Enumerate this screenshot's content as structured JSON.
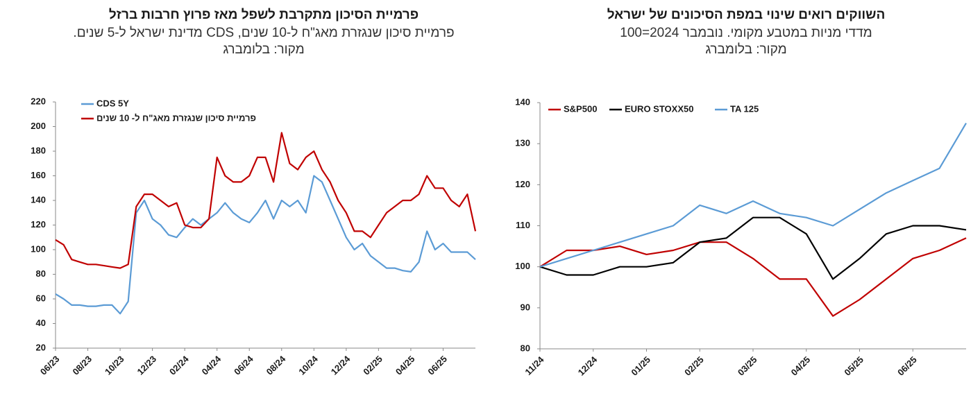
{
  "chart_data": [
    {
      "type": "line",
      "title": "פרמיית הסיכון מתקרבת לשפל מאז פרוץ חרבות ברזל",
      "subtitle": "פרמיית סיכון שנגזרת מאג\"ח ל-10 שנים, CDS מדינת ישראל ל-5 שנים.",
      "source": "מקור: בלומברג",
      "categories": [
        "06/23",
        null,
        null,
        null,
        "08/23",
        null,
        null,
        null,
        "10/23",
        null,
        null,
        null,
        "12/23",
        null,
        null,
        null,
        "02/24",
        null,
        null,
        null,
        "04/24",
        null,
        null,
        null,
        "06/24",
        null,
        null,
        null,
        "08/24",
        null,
        null,
        null,
        "10/24",
        null,
        null,
        null,
        "12/24",
        null,
        null,
        null,
        "02/25",
        null,
        null,
        null,
        "04/25",
        null,
        null,
        null,
        "06/25",
        null,
        null,
        null,
        null
      ],
      "series": [
        {
          "name": "CDS 5Y",
          "color": "#5b9bd5",
          "values": [
            64,
            60,
            55,
            55,
            54,
            54,
            55,
            55,
            48,
            58,
            130,
            140,
            125,
            120,
            112,
            110,
            118,
            125,
            120,
            125,
            130,
            138,
            130,
            125,
            122,
            130,
            140,
            125,
            140,
            135,
            140,
            130,
            160,
            155,
            140,
            125,
            110,
            100,
            105,
            95,
            90,
            85,
            85,
            83,
            82,
            90,
            115,
            100,
            105,
            98,
            98,
            98,
            92
          ]
        },
        {
          "name": "פרמיית סיכון שנגזרת מאג\"ח ל- 10 שנים",
          "color": "#c00000",
          "values": [
            108,
            104,
            92,
            90,
            88,
            88,
            87,
            86,
            85,
            88,
            135,
            145,
            145,
            140,
            135,
            138,
            120,
            118,
            118,
            125,
            175,
            160,
            155,
            155,
            160,
            175,
            175,
            155,
            195,
            170,
            165,
            175,
            180,
            165,
            155,
            140,
            130,
            115,
            115,
            110,
            120,
            130,
            135,
            140,
            140,
            145,
            160,
            150,
            150,
            140,
            135,
            145,
            115
          ]
        }
      ],
      "ylim": [
        20,
        220
      ],
      "yticks": [
        20,
        40,
        60,
        80,
        100,
        120,
        140,
        160,
        180,
        200,
        220
      ],
      "legend": "upper left"
    },
    {
      "type": "line",
      "title": "השווקים רואים שינוי במפת הסיכונים של ישראל",
      "subtitle": "מדדי מניות במטבע מקומי. נובמבר 2024=100",
      "source": "מקור: בלומברג",
      "categories": [
        "11/24",
        null,
        "12/24",
        null,
        "01/25",
        null,
        "02/25",
        null,
        "03/25",
        null,
        "04/25",
        null,
        "05/25",
        null,
        "06/25",
        null,
        null
      ],
      "series": [
        {
          "name": "S&P500",
          "color": "#c00000",
          "values": [
            100,
            104,
            104,
            105,
            103,
            104,
            106,
            106,
            102,
            97,
            97,
            88,
            92,
            97,
            102,
            104,
            107
          ]
        },
        {
          "name": "EURO STOXX50",
          "color": "#000000",
          "values": [
            100,
            98,
            98,
            100,
            100,
            101,
            106,
            107,
            112,
            112,
            108,
            97,
            102,
            108,
            110,
            110,
            109
          ]
        },
        {
          "name": "TA 125",
          "color": "#5b9bd5",
          "values": [
            100,
            102,
            104,
            106,
            108,
            110,
            115,
            113,
            116,
            113,
            112,
            110,
            114,
            118,
            121,
            124,
            135
          ]
        }
      ],
      "ylim": [
        80,
        140
      ],
      "yticks": [
        80,
        90,
        100,
        110,
        120,
        130,
        140
      ],
      "legend": "upper left"
    }
  ]
}
